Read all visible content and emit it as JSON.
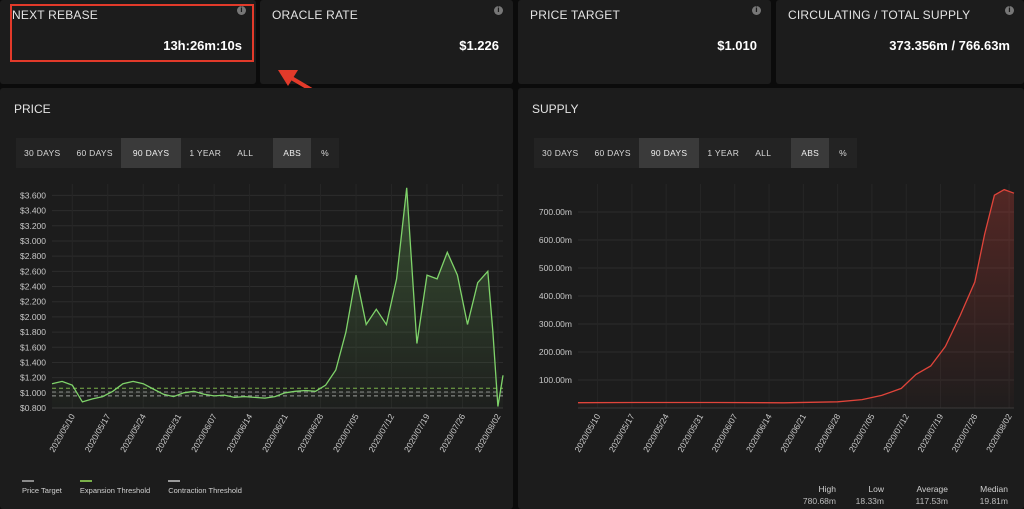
{
  "stats": [
    {
      "title": "NEXT REBASE",
      "value": "13h:26m:10s"
    },
    {
      "title": "ORACLE RATE",
      "value": "$1.226"
    },
    {
      "title": "PRICE TARGET",
      "value": "$1.010"
    },
    {
      "title": "CIRCULATING / TOTAL SUPPLY",
      "value": "373.356m / 766.63m"
    }
  ],
  "info_glyph": "i",
  "price_panel": {
    "title": "PRICE",
    "range_buttons": [
      "30 DAYS",
      "60 DAYS",
      "90 DAYS",
      "1 YEAR",
      "ALL"
    ],
    "active_range": "90 DAYS",
    "mode_buttons": [
      "ABS",
      "%"
    ],
    "active_mode": "ABS",
    "legend": [
      {
        "label": "Price Target",
        "color": "#8a8a8a"
      },
      {
        "label": "Expansion Threshold",
        "color": "#7ab04a"
      },
      {
        "label": "Contraction Threshold",
        "color": "#9a9a9a"
      }
    ]
  },
  "supply_panel": {
    "title": "SUPPLY",
    "range_buttons": [
      "30 DAYS",
      "60 DAYS",
      "90 DAYS",
      "1 YEAR",
      "ALL"
    ],
    "active_range": "90 DAYS",
    "mode_buttons": [
      "ABS",
      "%"
    ],
    "active_mode": "ABS",
    "summary": [
      {
        "label": "High",
        "value": "780.68m"
      },
      {
        "label": "Low",
        "value": "18.33m"
      },
      {
        "label": "Average",
        "value": "117.53m"
      },
      {
        "label": "Median",
        "value": "19.81m"
      }
    ]
  },
  "colors": {
    "price_line": "#7fd36a",
    "supply_line": "#e0443a",
    "highlight": "#e23a2a"
  },
  "chart_data": [
    {
      "type": "area",
      "ylim": [
        0.8,
        3.75
      ],
      "y_ticks": [
        "$0.800",
        "$1.000",
        "$1.200",
        "$1.400",
        "$1.600",
        "$1.800",
        "$2.000",
        "$2.200",
        "$2.400",
        "$2.600",
        "$2.800",
        "$3.000",
        "$3.200",
        "$3.400",
        "$3.600"
      ],
      "y_tick_values": [
        0.8,
        1.0,
        1.2,
        1.4,
        1.6,
        1.8,
        2.0,
        2.2,
        2.4,
        2.6,
        2.8,
        3.0,
        3.2,
        3.4,
        3.6
      ],
      "x_ticks": [
        "2020/05/10",
        "2020/05/17",
        "2020/05/24",
        "2020/05/31",
        "2020/06/07",
        "2020/06/14",
        "2020/06/21",
        "2020/06/28",
        "2020/07/05",
        "2020/07/12",
        "2020/07/19",
        "2020/07/26",
        "2020/08/02"
      ],
      "x_range": [
        "2020/05/06",
        "2020/08/03"
      ],
      "reference_lines": [
        {
          "name": "Expansion Threshold",
          "value": 1.06
        },
        {
          "name": "Price Target",
          "value": 1.01
        },
        {
          "name": "Contraction Threshold",
          "value": 0.96
        }
      ],
      "series": [
        {
          "x": [
            "2020/05/06",
            "2020/05/08",
            "2020/05/10",
            "2020/05/12",
            "2020/05/14",
            "2020/05/16",
            "2020/05/18",
            "2020/05/20",
            "2020/05/22",
            "2020/05/24",
            "2020/05/26",
            "2020/05/28",
            "2020/05/30",
            "2020/06/01",
            "2020/06/03",
            "2020/06/05",
            "2020/06/07",
            "2020/06/09",
            "2020/06/11",
            "2020/06/13",
            "2020/06/15",
            "2020/06/17",
            "2020/06/19",
            "2020/06/21",
            "2020/06/23",
            "2020/06/25",
            "2020/06/27",
            "2020/06/29",
            "2020/07/01",
            "2020/07/03",
            "2020/07/05",
            "2020/07/07",
            "2020/07/09",
            "2020/07/11",
            "2020/07/13",
            "2020/07/15",
            "2020/07/17",
            "2020/07/19",
            "2020/07/21",
            "2020/07/23",
            "2020/07/25",
            "2020/07/27",
            "2020/07/29",
            "2020/07/31",
            "2020/08/01",
            "2020/08/02",
            "2020/08/03"
          ],
          "values": [
            1.12,
            1.15,
            1.1,
            0.88,
            0.92,
            0.95,
            1.02,
            1.12,
            1.15,
            1.12,
            1.05,
            0.98,
            0.95,
            1.0,
            1.02,
            0.98,
            0.96,
            0.97,
            0.94,
            0.95,
            0.94,
            0.93,
            0.95,
            1.0,
            1.02,
            1.03,
            1.02,
            1.1,
            1.3,
            1.8,
            2.55,
            1.9,
            2.1,
            1.9,
            2.5,
            3.7,
            1.65,
            2.55,
            2.5,
            2.85,
            2.55,
            1.9,
            2.45,
            2.6,
            1.8,
            0.82,
            1.23
          ]
        }
      ]
    },
    {
      "type": "area",
      "ylim": [
        0,
        800
      ],
      "y_ticks": [
        "100.00m",
        "200.00m",
        "300.00m",
        "400.00m",
        "500.00m",
        "600.00m",
        "700.00m"
      ],
      "y_tick_values": [
        100,
        200,
        300,
        400,
        500,
        600,
        700
      ],
      "x_ticks": [
        "2020/05/10",
        "2020/05/17",
        "2020/05/24",
        "2020/05/31",
        "2020/06/07",
        "2020/06/14",
        "2020/06/21",
        "2020/06/28",
        "2020/07/05",
        "2020/07/12",
        "2020/07/19",
        "2020/07/26",
        "2020/08/02"
      ],
      "x_range": [
        "2020/05/06",
        "2020/08/03"
      ],
      "series": [
        {
          "x": [
            "2020/05/06",
            "2020/05/20",
            "2020/06/03",
            "2020/06/17",
            "2020/06/28",
            "2020/07/03",
            "2020/07/07",
            "2020/07/11",
            "2020/07/14",
            "2020/07/17",
            "2020/07/20",
            "2020/07/23",
            "2020/07/26",
            "2020/07/28",
            "2020/07/30",
            "2020/08/01",
            "2020/08/03"
          ],
          "values": [
            19,
            19.5,
            19.8,
            18.5,
            22,
            30,
            45,
            70,
            120,
            150,
            220,
            330,
            450,
            620,
            760,
            780,
            767
          ]
        }
      ]
    }
  ]
}
